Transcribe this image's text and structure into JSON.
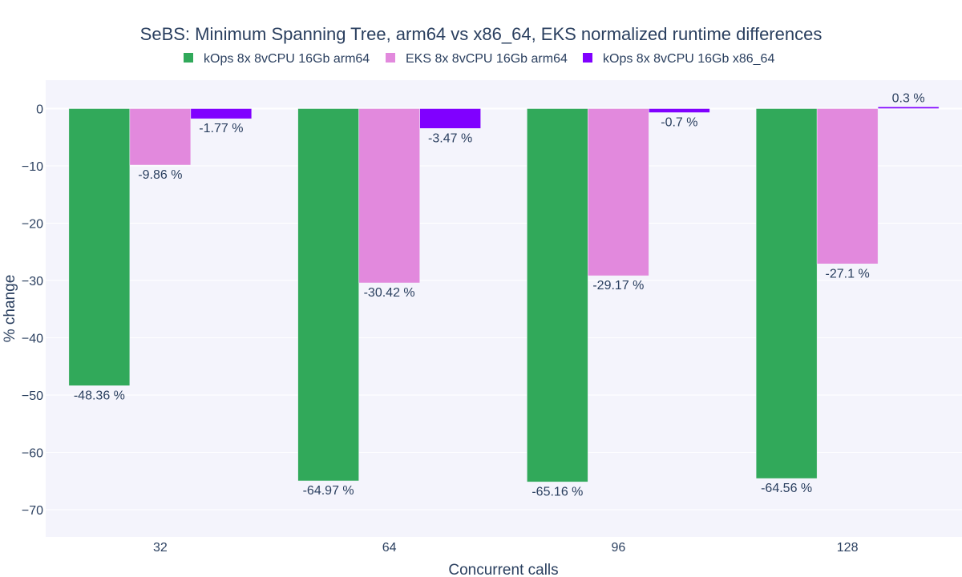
{
  "chart_data": {
    "type": "bar",
    "title": "SeBS: Minimum Spanning Tree, arm64 vs x86_64, EKS normalized runtime differences",
    "xlabel": "Concurrent calls",
    "ylabel": "% change",
    "categories": [
      "32",
      "64",
      "96",
      "128"
    ],
    "ylim": [
      -75,
      5
    ],
    "yticks": [
      0,
      -10,
      -20,
      -30,
      -40,
      -50,
      -60,
      -70
    ],
    "ytick_labels": [
      "0",
      "−10",
      "−20",
      "−30",
      "−40",
      "−50",
      "−60",
      "−70"
    ],
    "grid": true,
    "legend_position": "top",
    "series": [
      {
        "name": "kOps 8x 8vCPU 16Gb arm64",
        "color": "#31a95a",
        "values": [
          -48.36,
          -64.97,
          -65.16,
          -64.56
        ],
        "labels": [
          "-48.36 %",
          "-64.97 %",
          "-65.16 %",
          "-64.56 %"
        ]
      },
      {
        "name": "EKS 8x 8vCPU 16Gb arm64",
        "color": "#e289dd",
        "values": [
          -9.86,
          -30.42,
          -29.17,
          -27.1
        ],
        "labels": [
          "-9.86 %",
          "-30.42 %",
          "-29.17 %",
          "-27.1 %"
        ]
      },
      {
        "name": "kOps 8x 8vCPU 16Gb x86_64",
        "color": "#8000ff",
        "values": [
          -1.77,
          -3.47,
          -0.7,
          0.3
        ],
        "labels": [
          "-1.77 %",
          "-3.47 %",
          "-0.7 %",
          "0.3 %"
        ]
      }
    ]
  }
}
